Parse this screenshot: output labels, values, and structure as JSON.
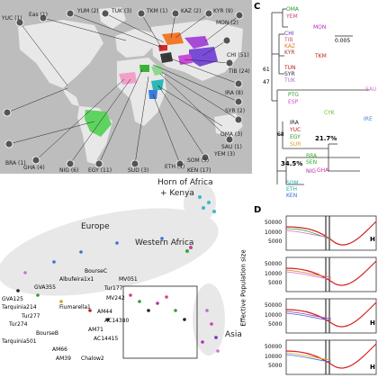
{
  "panel_c": {
    "letter": "C",
    "scale": "0.005",
    "pct1": "21.7%",
    "pct2": "34.5%",
    "node61": "61",
    "node47": "47",
    "node68": "68",
    "tips": [
      "OMA",
      "YEM",
      "MON",
      "CHI",
      "TIB",
      "KAZ",
      "KYR",
      "TUN",
      "TKM",
      "SYR",
      "TUK",
      "SAU",
      "PTG",
      "ESP",
      "CYK",
      "IRE",
      "IRA",
      "YUC",
      "EGY",
      "SUR",
      "BRA",
      "SEN",
      "SOM",
      "ETH",
      "NIG",
      "GHA",
      "KEN"
    ]
  },
  "panel_d": {
    "letter": "D",
    "ylabel": "Effective Population size",
    "ticks": [
      "50000",
      "10000",
      "5000"
    ],
    "side_labels": [
      "H",
      "H",
      "H"
    ]
  },
  "map_left": [
    "YUC (1)",
    "BRA (1)",
    "GHA (4)",
    "NIG (6)",
    "EGY (11)",
    "SUD (3)",
    "ETH (1)",
    "SOM (5)",
    "KEN (17)",
    "YEM (3)",
    "SAU (1)"
  ],
  "map_top": [
    "Eas (1)",
    "YUM (2)",
    "TUK (3)",
    "TKM (1)",
    "KAZ (2)",
    "KYR (9)",
    "MON (2)"
  ],
  "map_right": [
    "CHI (51)",
    "TIB (24)",
    "IRA (8)",
    "SYR (2)",
    "OMA (3)"
  ],
  "regions": {
    "europe": "Europe",
    "horn": "Horn of Africa",
    "kenya": "+ Kenya",
    "western_africa": "Western Africa",
    "asia": "Asia"
  },
  "samples": [
    "GVA125",
    "Tarquinia214",
    "Tur277",
    "Tur274",
    "GVA355",
    "Albufeira1x1",
    "Fiumarella1",
    "Tur177",
    "BourseC",
    "MV051",
    "MV242",
    "AM44",
    "AC14380",
    "AM71",
    "AC14415",
    "BourseB",
    "Tarquinia501",
    "AM66",
    "AM39",
    "Chalow2"
  ]
}
